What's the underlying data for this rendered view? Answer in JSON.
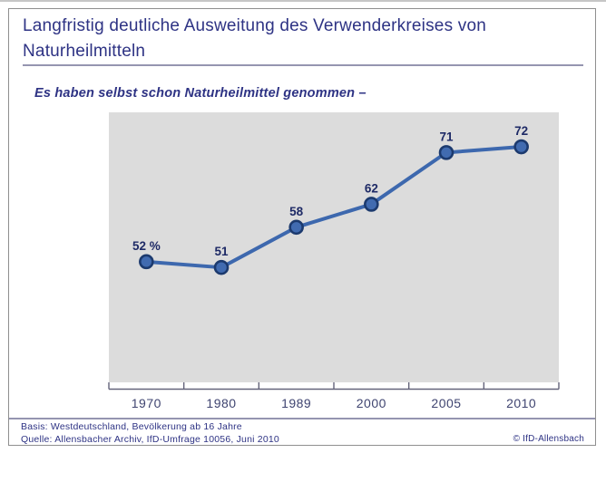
{
  "page": {
    "background": "#ffffff",
    "top_strip_color": "#c6c6c6",
    "slide_border_color": "#8f8f8f"
  },
  "header": {
    "title_line1": "Langfristig deutliche Ausweitung des Verwenderkreises von",
    "title_line2": "Naturheilmitteln",
    "title_color": "#2e3384",
    "rule_color": "#9595b0"
  },
  "subtitle": {
    "text": "Es haben selbst schon Naturheilmittel genommen –"
  },
  "chart_data": {
    "type": "line",
    "title": "Langfristig deutliche Ausweitung des Verwenderkreises von Naturheilmitteln",
    "subtitle": "Es haben selbst schon Naturheilmittel genommen –",
    "categories": [
      "1970",
      "1980",
      "1989",
      "2000",
      "2005",
      "2010"
    ],
    "values": [
      52,
      51,
      58,
      62,
      71,
      72
    ],
    "point_labels": [
      "52 %",
      "51",
      "58",
      "62",
      "71",
      "72"
    ],
    "unit": "%",
    "xlabel": "",
    "ylabel": "",
    "ylim": [
      31,
      78
    ],
    "grid": false,
    "legend": false,
    "plot_bg": "#dcdcdc",
    "line_color": "#3d68ae",
    "marker_fill": "#416bb0",
    "marker_stroke": "#1c3a6e",
    "label_color": "#1e2a66",
    "axis_color": "#63637a",
    "tick_label_color": "#3f4470"
  },
  "footer": {
    "basis": "Basis: Westdeutschland, Bevölkerung ab 16 Jahre",
    "quelle": "Quelle: Allensbacher Archiv, IfD-Umfrage 10056, Juni 2010",
    "copyright": "© IfD-Allensbach",
    "text_color": "#2e3384",
    "rule_color": "#9595b0"
  }
}
